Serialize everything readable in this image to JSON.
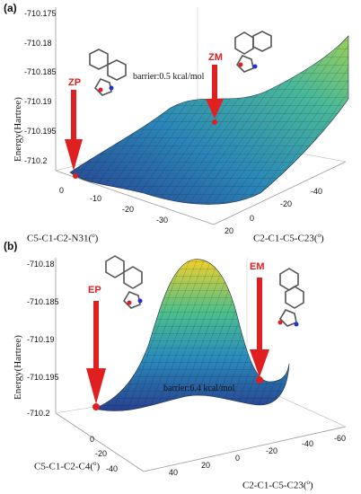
{
  "panels": [
    {
      "label": "(a)",
      "ylabel": "Energy(Hartree)",
      "yticks": [
        "-710.175",
        "-710.18",
        "-710.185",
        "-710.19",
        "-710.195",
        "-710.2"
      ],
      "xticks": [
        "0",
        "-10",
        "-20",
        "-30"
      ],
      "xlabel": "C5-C1-C2-N31(",
      "zticks": [
        "-40",
        "-20",
        "0",
        "20"
      ],
      "zlabel": "C2-C1-C5-C23(",
      "deg": "o",
      "close": ")",
      "annotation": "barrier:0.5 kcal/mol",
      "marker_left": "ZP",
      "marker_right": "ZM"
    },
    {
      "label": "(b)",
      "ylabel": "Energy(Hartree)",
      "yticks": [
        "-710.18",
        "-710.185",
        "-710.19",
        "-710.195",
        "-710.2"
      ],
      "xticks": [
        "0",
        "-20",
        "-40"
      ],
      "xlabel": "C5-C1-C2-C4(",
      "zticks": [
        "-60",
        "-40",
        "-20",
        "0",
        "20",
        "40"
      ],
      "zlabel": "C2-C1-C5-C23(",
      "deg": "o",
      "close": ")",
      "annotation": "barrier:6.4 kcal/mol",
      "marker_left": "EP",
      "marker_right": "EM"
    }
  ],
  "colors": {
    "arrow": "#e02020",
    "low": "#1f4e9c",
    "mid": "#3fb0a0",
    "high": "#f2d02a"
  }
}
